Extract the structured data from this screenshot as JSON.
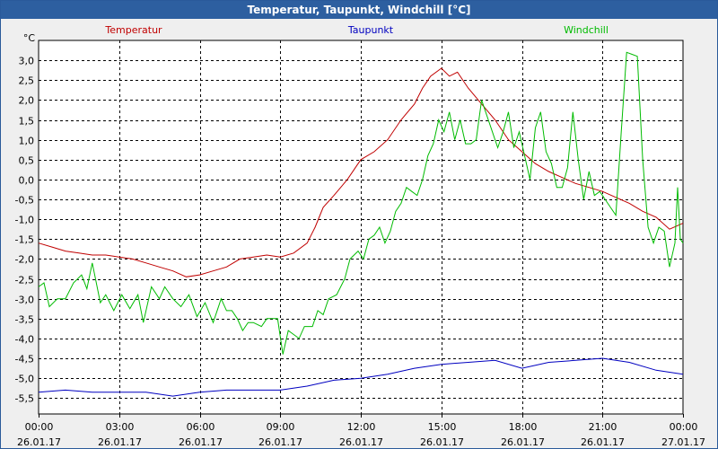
{
  "window": {
    "title": "Temperatur, Taupunkt, Windchill [°C]"
  },
  "colors": {
    "temperatur": "#c00000",
    "taupunkt": "#0000c0",
    "windchill": "#00bb00",
    "grid": "#000000",
    "plot_bg": "#ffffff"
  },
  "chart_data": {
    "type": "line",
    "title": "Temperatur, Taupunkt, Windchill [°C]",
    "ylabel": "°C",
    "ylim": [
      -5.9,
      3.5
    ],
    "xlim": [
      0,
      24
    ],
    "yticks": [
      "3,0",
      "2,5",
      "2,0",
      "1,5",
      "1,0",
      "0,5",
      "0,0",
      "-0,5",
      "-1,0",
      "-1,5",
      "-2,0",
      "-2,5",
      "-3,0",
      "-3,5",
      "-4,0",
      "-4,5",
      "-5,0",
      "-5,5"
    ],
    "ytick_values": [
      3.0,
      2.5,
      2.0,
      1.5,
      1.0,
      0.5,
      0.0,
      -0.5,
      -1.0,
      -1.5,
      -2.0,
      -2.5,
      -3.0,
      -3.5,
      -4.0,
      -4.5,
      -5.0,
      -5.5
    ],
    "xticks": [
      {
        "x": 0,
        "time": "00:00",
        "date": "26.01.17"
      },
      {
        "x": 3,
        "time": "03:00",
        "date": "26.01.17"
      },
      {
        "x": 6,
        "time": "06:00",
        "date": "26.01.17"
      },
      {
        "x": 9,
        "time": "09:00",
        "date": "26.01.17"
      },
      {
        "x": 12,
        "time": "12:00",
        "date": "26.01.17"
      },
      {
        "x": 15,
        "time": "15:00",
        "date": "26.01.17"
      },
      {
        "x": 18,
        "time": "18:00",
        "date": "26.01.17"
      },
      {
        "x": 21,
        "time": "21:00",
        "date": "26.01.17"
      },
      {
        "x": 24,
        "time": "00:00",
        "date": "27.01.17"
      }
    ],
    "legend": [
      "Temperatur",
      "Taupunkt",
      "Windchill"
    ],
    "grid": true,
    "series": [
      {
        "name": "Temperatur",
        "color": "#c00000",
        "points": [
          [
            0,
            -1.6
          ],
          [
            0.5,
            -1.7
          ],
          [
            1,
            -1.8
          ],
          [
            1.5,
            -1.85
          ],
          [
            2,
            -1.9
          ],
          [
            2.5,
            -1.9
          ],
          [
            3,
            -1.95
          ],
          [
            3.5,
            -2.0
          ],
          [
            4,
            -2.1
          ],
          [
            4.5,
            -2.2
          ],
          [
            5,
            -2.3
          ],
          [
            5.5,
            -2.45
          ],
          [
            6,
            -2.4
          ],
          [
            6.5,
            -2.3
          ],
          [
            7,
            -2.2
          ],
          [
            7.5,
            -2.0
          ],
          [
            8,
            -1.95
          ],
          [
            8.5,
            -1.9
          ],
          [
            9,
            -1.95
          ],
          [
            9.5,
            -1.85
          ],
          [
            10,
            -1.6
          ],
          [
            10.3,
            -1.2
          ],
          [
            10.6,
            -0.7
          ],
          [
            11,
            -0.4
          ],
          [
            11.5,
            0.0
          ],
          [
            12,
            0.5
          ],
          [
            12.5,
            0.7
          ],
          [
            13,
            1.0
          ],
          [
            13.5,
            1.5
          ],
          [
            14,
            1.9
          ],
          [
            14.3,
            2.3
          ],
          [
            14.6,
            2.6
          ],
          [
            15,
            2.8
          ],
          [
            15.3,
            2.6
          ],
          [
            15.6,
            2.7
          ],
          [
            16,
            2.3
          ],
          [
            16.5,
            1.9
          ],
          [
            17,
            1.5
          ],
          [
            17.5,
            1.0
          ],
          [
            18,
            0.7
          ],
          [
            18.5,
            0.4
          ],
          [
            19,
            0.2
          ],
          [
            19.5,
            0.05
          ],
          [
            20,
            -0.1
          ],
          [
            20.5,
            -0.2
          ],
          [
            21,
            -0.3
          ],
          [
            21.5,
            -0.45
          ],
          [
            22,
            -0.6
          ],
          [
            22.5,
            -0.8
          ],
          [
            23,
            -0.95
          ],
          [
            23.5,
            -1.25
          ],
          [
            24,
            -1.1
          ]
        ]
      },
      {
        "name": "Taupunkt",
        "color": "#0000c0",
        "points": [
          [
            0,
            -5.35
          ],
          [
            1,
            -5.3
          ],
          [
            2,
            -5.35
          ],
          [
            3,
            -5.35
          ],
          [
            4,
            -5.35
          ],
          [
            5,
            -5.45
          ],
          [
            6,
            -5.35
          ],
          [
            7,
            -5.3
          ],
          [
            8,
            -5.3
          ],
          [
            9,
            -5.3
          ],
          [
            10,
            -5.2
          ],
          [
            11,
            -5.05
          ],
          [
            12,
            -5.0
          ],
          [
            13,
            -4.9
          ],
          [
            14,
            -4.75
          ],
          [
            15,
            -4.65
          ],
          [
            16,
            -4.6
          ],
          [
            17,
            -4.55
          ],
          [
            18,
            -4.75
          ],
          [
            19,
            -4.6
          ],
          [
            20,
            -4.55
          ],
          [
            21,
            -4.5
          ],
          [
            22,
            -4.6
          ],
          [
            23,
            -4.8
          ],
          [
            24,
            -4.9
          ]
        ]
      },
      {
        "name": "Windchill",
        "color": "#00bb00",
        "points": [
          [
            0,
            -2.7
          ],
          [
            0.2,
            -2.6
          ],
          [
            0.4,
            -3.2
          ],
          [
            0.7,
            -3.0
          ],
          [
            1,
            -3.0
          ],
          [
            1.3,
            -2.6
          ],
          [
            1.6,
            -2.4
          ],
          [
            1.8,
            -2.75
          ],
          [
            2,
            -2.1
          ],
          [
            2.3,
            -3.1
          ],
          [
            2.5,
            -2.9
          ],
          [
            2.8,
            -3.3
          ],
          [
            3.1,
            -2.9
          ],
          [
            3.4,
            -3.25
          ],
          [
            3.7,
            -2.9
          ],
          [
            3.9,
            -3.6
          ],
          [
            4.2,
            -2.7
          ],
          [
            4.5,
            -3.0
          ],
          [
            4.7,
            -2.7
          ],
          [
            5,
            -3.0
          ],
          [
            5.3,
            -3.2
          ],
          [
            5.6,
            -2.9
          ],
          [
            5.9,
            -3.45
          ],
          [
            6.2,
            -3.1
          ],
          [
            6.5,
            -3.6
          ],
          [
            6.8,
            -3.0
          ],
          [
            7,
            -3.3
          ],
          [
            7.2,
            -3.3
          ],
          [
            7.4,
            -3.5
          ],
          [
            7.6,
            -3.8
          ],
          [
            7.8,
            -3.6
          ],
          [
            8,
            -3.6
          ],
          [
            8.3,
            -3.7
          ],
          [
            8.5,
            -3.5
          ],
          [
            8.7,
            -3.5
          ],
          [
            8.9,
            -3.5
          ],
          [
            9.1,
            -4.4
          ],
          [
            9.3,
            -3.8
          ],
          [
            9.5,
            -3.9
          ],
          [
            9.7,
            -4.0
          ],
          [
            9.9,
            -3.7
          ],
          [
            10.2,
            -3.7
          ],
          [
            10.4,
            -3.3
          ],
          [
            10.6,
            -3.4
          ],
          [
            10.8,
            -3.0
          ],
          [
            11.1,
            -2.9
          ],
          [
            11.4,
            -2.5
          ],
          [
            11.6,
            -2.0
          ],
          [
            11.9,
            -1.8
          ],
          [
            12.1,
            -2.0
          ],
          [
            12.3,
            -1.5
          ],
          [
            12.5,
            -1.4
          ],
          [
            12.7,
            -1.2
          ],
          [
            12.9,
            -1.6
          ],
          [
            13.1,
            -1.3
          ],
          [
            13.3,
            -0.8
          ],
          [
            13.5,
            -0.6
          ],
          [
            13.7,
            -0.2
          ],
          [
            13.9,
            -0.3
          ],
          [
            14.1,
            -0.4
          ],
          [
            14.3,
            0.0
          ],
          [
            14.5,
            0.6
          ],
          [
            14.7,
            0.9
          ],
          [
            14.9,
            1.5
          ],
          [
            15.1,
            1.2
          ],
          [
            15.3,
            1.7
          ],
          [
            15.5,
            1.0
          ],
          [
            15.7,
            1.5
          ],
          [
            15.9,
            0.9
          ],
          [
            16.1,
            0.9
          ],
          [
            16.3,
            1.0
          ],
          [
            16.5,
            2.0
          ],
          [
            16.7,
            1.6
          ],
          [
            16.9,
            1.2
          ],
          [
            17.1,
            0.8
          ],
          [
            17.3,
            1.2
          ],
          [
            17.5,
            1.7
          ],
          [
            17.7,
            0.8
          ],
          [
            17.9,
            1.2
          ],
          [
            18.1,
            0.6
          ],
          [
            18.3,
            0.0
          ],
          [
            18.5,
            1.3
          ],
          [
            18.7,
            1.7
          ],
          [
            18.9,
            0.7
          ],
          [
            19.1,
            0.4
          ],
          [
            19.3,
            -0.2
          ],
          [
            19.5,
            -0.2
          ],
          [
            19.7,
            0.3
          ],
          [
            19.9,
            1.7
          ],
          [
            20.1,
            0.5
          ],
          [
            20.3,
            -0.5
          ],
          [
            20.5,
            0.2
          ],
          [
            20.7,
            -0.4
          ],
          [
            20.9,
            -0.3
          ],
          [
            21.1,
            -0.5
          ],
          [
            21.3,
            -0.7
          ],
          [
            21.5,
            -0.9
          ],
          [
            21.7,
            1.2
          ],
          [
            21.9,
            3.2
          ],
          [
            22.1,
            3.15
          ],
          [
            22.3,
            3.1
          ],
          [
            22.5,
            0.5
          ],
          [
            22.7,
            -1.2
          ],
          [
            22.9,
            -1.6
          ],
          [
            23.1,
            -1.2
          ],
          [
            23.3,
            -1.3
          ],
          [
            23.5,
            -2.2
          ],
          [
            23.7,
            -1.6
          ],
          [
            23.8,
            -0.2
          ],
          [
            23.9,
            -1.5
          ],
          [
            24,
            -1.6
          ]
        ]
      }
    ]
  }
}
